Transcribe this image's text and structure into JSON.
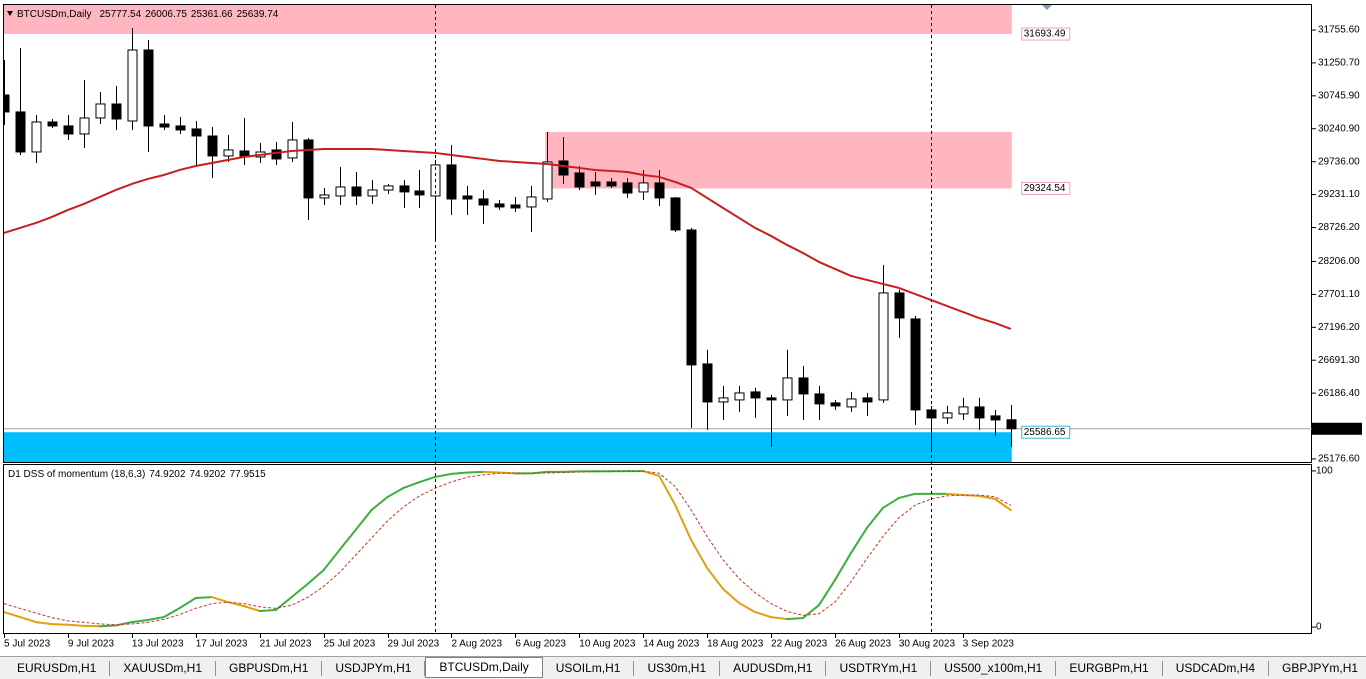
{
  "chart_data": [
    {
      "type": "candlestick",
      "title": "BTCUSDm,Daily",
      "categories": [
        "5 Jul 2023",
        null,
        null,
        null,
        "9 Jul 2023",
        null,
        null,
        null,
        "13 Jul 2023",
        null,
        null,
        null,
        "17 Jul 2023",
        null,
        null,
        null,
        "21 Jul 2023",
        null,
        null,
        null,
        "25 Jul 2023",
        null,
        null,
        null,
        "29 Jul 2023",
        null,
        null,
        null,
        "2 Aug 2023",
        null,
        null,
        null,
        "6 Aug 2023",
        null,
        null,
        null,
        "10 Aug 2023",
        null,
        null,
        null,
        "14 Aug 2023",
        null,
        null,
        null,
        "18 Aug 2023",
        null,
        null,
        null,
        "22 Aug 2023",
        null,
        null,
        null,
        "26 Aug 2023",
        null,
        null,
        null,
        "30 Aug 2023",
        null,
        null,
        null,
        "3 Sep 2023",
        null,
        null,
        null
      ],
      "open": [
        30759,
        30499,
        29885,
        30345,
        30284,
        30161,
        30406,
        30621,
        30360,
        31449,
        30314,
        30284,
        30238,
        30130,
        29824,
        29900,
        29808,
        29916,
        29793,
        30069,
        29180,
        29210,
        29348,
        29210,
        29302,
        29364,
        29287,
        29210,
        29686,
        29210,
        29164,
        29088,
        29072,
        29042,
        29164,
        29747,
        29563,
        29425,
        29425,
        29410,
        29272,
        29410,
        29180,
        28689,
        26634,
        26051,
        26082,
        26205,
        26113,
        26082,
        26419,
        26174,
        26036,
        25975,
        26113,
        26082,
        27723,
        27324,
        25929,
        25806,
        25867,
        25975,
        25837,
        25777.54
      ],
      "high": [
        31296,
        31480,
        30452,
        30391,
        30452,
        30989,
        30805,
        30897,
        31787,
        31603,
        30452,
        30422,
        30360,
        30268,
        30146,
        30406,
        30023,
        30038,
        30345,
        30100,
        29333,
        29655,
        29578,
        29456,
        29394,
        29456,
        29609,
        29762,
        29992,
        29364,
        29302,
        29149,
        29195,
        29364,
        30192,
        30115,
        29670,
        29578,
        29486,
        29486,
        29609,
        29609,
        29195,
        28720,
        26849,
        26297,
        26297,
        26266,
        26159,
        26849,
        26603,
        26297,
        26082,
        26205,
        26189,
        28152,
        27769,
        27370,
        25990,
        25990,
        26113,
        26113,
        25929,
        26006.75
      ],
      "low": [
        30299,
        29839,
        29716,
        30253,
        30069,
        29946,
        30314,
        30222,
        30222,
        29885,
        30222,
        30161,
        29686,
        29486,
        29732,
        29686,
        29716,
        29686,
        29732,
        28842,
        29072,
        29072,
        29072,
        29088,
        29241,
        29026,
        29026,
        28536,
        28919,
        28919,
        28781,
        28996,
        28965,
        28658,
        29118,
        29394,
        29302,
        29226,
        29333,
        29180,
        29149,
        29057,
        28658,
        25653,
        25622,
        25775,
        25898,
        25806,
        25361,
        25837,
        25775,
        25775,
        25929,
        25898,
        25837,
        26036,
        27033,
        25699,
        25315,
        25714,
        25775,
        25622,
        25530,
        25361.66
      ],
      "close": [
        30499,
        29885,
        30345,
        30284,
        30161,
        30406,
        30621,
        30391,
        31449,
        30284,
        30268,
        30222,
        30130,
        29824,
        29916,
        29808,
        29885,
        29778,
        30069,
        29180,
        29226,
        29348,
        29210,
        29302,
        29364,
        29272,
        29226,
        29686,
        29164,
        29164,
        29072,
        29042,
        29026,
        29195,
        29732,
        29532,
        29348,
        29364,
        29364,
        29256,
        29410,
        29180,
        28689,
        26619,
        26051,
        26113,
        26189,
        26113,
        26082,
        26419,
        26174,
        26021,
        25990,
        26097,
        26051,
        27723,
        27339,
        25929,
        25806,
        25883,
        25975,
        25806,
        25775,
        25639.74
      ],
      "up_color": "#ffffff",
      "down_color": "#000000",
      "edge_color": "#000000",
      "ma": {
        "color": "#c81e1e",
        "values": [
          28643,
          28720,
          28796,
          28888,
          28996,
          29088,
          29195,
          29302,
          29394,
          29471,
          29532,
          29609,
          29670,
          29716,
          29762,
          29808,
          29839,
          29870,
          29900,
          29916,
          29931,
          29931,
          29931,
          29931,
          29916,
          29900,
          29885,
          29870,
          29839,
          29808,
          29778,
          29747,
          29732,
          29716,
          29701,
          29670,
          29640,
          29609,
          29594,
          29578,
          29532,
          29502,
          29425,
          29333,
          29180,
          29026,
          28873,
          28720,
          28597,
          28459,
          28336,
          28198,
          28091,
          27984,
          27922,
          27861,
          27800,
          27708,
          27615,
          27523,
          27431,
          27339,
          27263,
          27171
        ]
      },
      "zones": [
        {
          "level": 31693.49,
          "far": 32139,
          "start_index": 0,
          "color": "#ffb6c1",
          "label_color": "#f4a0ae"
        },
        {
          "level": 29324.54,
          "far": 30192,
          "start_index": 34,
          "color": "#ffb6c1",
          "label_color": "#f4a0ae"
        },
        {
          "level": 25586.65,
          "far": 25130,
          "start_index": 0,
          "color": "#00bfff",
          "label_color": "#36b8d8"
        }
      ],
      "separators": [
        27,
        58
      ],
      "ylim": [
        25130,
        32139
      ],
      "yticks": [
        {
          "value": 31755.6,
          "label": "31755.60"
        },
        {
          "value": 31250.7,
          "label": "31250.70"
        },
        {
          "value": 30745.9,
          "label": "30745.90"
        },
        {
          "value": 30240.9,
          "label": "30240.90"
        },
        {
          "value": 29736,
          "label": "29736.00"
        },
        {
          "value": 29231.1,
          "label": "29231.10"
        },
        {
          "value": 28726.2,
          "label": "28726.20"
        },
        {
          "value": 28206,
          "label": "28206.00"
        },
        {
          "value": 27701.1,
          "label": "27701.10"
        },
        {
          "value": 27196.2,
          "label": "27196.20"
        },
        {
          "value": 26691.3,
          "label": "26691.30"
        },
        {
          "value": 26186.4,
          "label": "26186.40"
        },
        {
          "value": 25176.6,
          "label": "25176.60"
        }
      ]
    },
    {
      "type": "line",
      "title": "D1 DSS of momentum (18,6,3)",
      "series": [
        {
          "up_color": "#3cb03c",
          "down_color": "#e0a010",
          "values": [
            9.6,
            6.4,
            3.2,
            1.9,
            1.5,
            0.8,
            0.5,
            1.0,
            3.2,
            4.5,
            6.4,
            12.2,
            18.6,
            19.2,
            16.0,
            13.5,
            10.3,
            10.9,
            19.2,
            27.6,
            36.5,
            49.4,
            62.2,
            75.0,
            83.3,
            89.1,
            92.9,
            96.2,
            98.1,
            99.0,
            99.4,
            99.0,
            98.4,
            98.4,
            99.4,
            99.4,
            99.7,
            99.8,
            99.8,
            99.9,
            99.9,
            96.8,
            78.2,
            55.8,
            37.8,
            24.4,
            15.4,
            9.6,
            6.4,
            5.1,
            5.8,
            14.1,
            30.1,
            47.4,
            63.5,
            76.3,
            82.7,
            85.3,
            85.3,
            85.3,
            84.6,
            84.0,
            82.1,
            74.9202
          ]
        },
        {
          "color": "#c0392b",
          "dashed": true,
          "values": [
            15,
            12,
            9,
            6,
            4,
            3,
            2,
            1.5,
            2,
            3,
            5,
            8,
            12,
            15,
            16,
            15,
            13,
            12,
            14,
            19,
            26,
            35,
            46,
            57,
            68,
            77,
            84,
            89,
            93,
            96,
            97.5,
            98.5,
            98.7,
            98.5,
            98.7,
            99,
            99.3,
            99.5,
            99.6,
            99.7,
            99.8,
            98.5,
            90,
            75,
            58,
            43,
            31,
            22,
            15,
            10,
            7.5,
            8.5,
            16,
            29,
            44,
            58,
            70,
            78,
            82,
            84,
            84.5,
            84.5,
            83.5,
            77.9515
          ]
        }
      ],
      "ylim": [
        -3.8,
        103.8
      ],
      "yticks": [
        0,
        100
      ]
    }
  ],
  "tabs": [
    "EURUSDm,H1",
    "XAUUSDm,H1",
    "GBPUSDm,H1",
    "USDJPYm,H1",
    "BTCUSDm,Daily",
    "USOILm,H1",
    "US30m,H1",
    "AUDUSDm,H1",
    "USDTRYm,H1",
    "US500_x100m,H1",
    "EURGBPm,H1",
    "USDCADm,H4",
    "GBPJPYm,H1"
  ],
  "active_tab": 4
}
